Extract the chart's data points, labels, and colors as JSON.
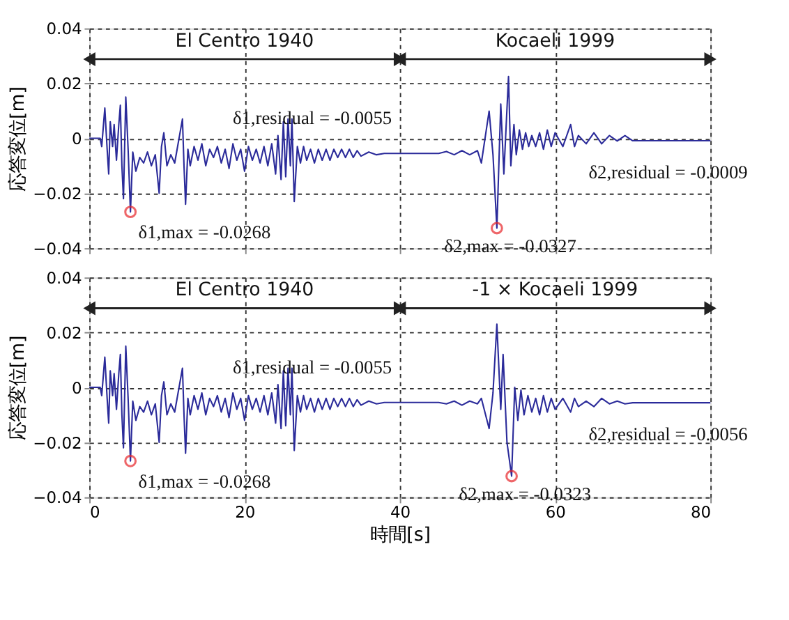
{
  "chart_data": [
    {
      "type": "line",
      "ylabel": "応答変位[m]",
      "xlim": [
        0,
        80
      ],
      "xticks": [
        0,
        20,
        40,
        60,
        80
      ],
      "ylim": [
        -0.04,
        0.04
      ],
      "yticks": [
        -0.04,
        -0.02,
        0,
        0.02,
        0.04
      ],
      "grid": true,
      "tick_labels": "y",
      "annotations": [
        "El Centro 1940",
        "Kocaeli 1999",
        {
          "text": "δ1,max = -0.0268",
          "x": 5.3,
          "y": -0.0268
        },
        {
          "text": "δ1,residual = -0.0055",
          "x": 40,
          "y": -0.0055
        },
        {
          "text": "δ2,max = -0.0327",
          "x": 52.5,
          "y": -0.0327
        },
        {
          "text": "δ2,residual = -0.0009",
          "x": 80,
          "y": -0.0009
        }
      ],
      "series": [
        {
          "color": "#2b2b9a",
          "line_style": "solid",
          "x": [
            0,
            1.4,
            1.6,
            2.0,
            2.3,
            2.5,
            2.7,
            3.0,
            3.2,
            3.5,
            3.8,
            4.0,
            4.2,
            4.4,
            4.7,
            5.0,
            5.3,
            5.6,
            6.0,
            6.5,
            7,
            7.5,
            8,
            8.5,
            9,
            9.3,
            9.6,
            10,
            10.5,
            11,
            12,
            12.2,
            12.4,
            12.7,
            13,
            13.5,
            14,
            14.5,
            15,
            15.5,
            16,
            16.5,
            17,
            17.5,
            18,
            18.5,
            19,
            19.5,
            20,
            20.5,
            21,
            21.5,
            22,
            22.5,
            23,
            23.5,
            24,
            24.3,
            24.7,
            25,
            25.3,
            25.6,
            25.9,
            26.1,
            26.4,
            26.8,
            27.2,
            27.6,
            28,
            28.5,
            29,
            29.5,
            30,
            30.5,
            31,
            31.5,
            32,
            32.5,
            33,
            33.5,
            34,
            34.5,
            35,
            36,
            37,
            38,
            40,
            45,
            46,
            47,
            48,
            49,
            50,
            50.5,
            51.5,
            52,
            52.5,
            53,
            53.4,
            54,
            54.3,
            54.7,
            55,
            55.4,
            55.8,
            56.2,
            56.6,
            57,
            57.5,
            58,
            58.5,
            59,
            59.5,
            60,
            61,
            62,
            62.5,
            63,
            64,
            65,
            66,
            67,
            68,
            69,
            70,
            80
          ],
          "values": [
            0,
            0,
            -0.003,
            0.011,
            -0.004,
            -0.013,
            0.006,
            -0.003,
            0.005,
            -0.008,
            0.005,
            0.012,
            -0.01,
            -0.022,
            0.015,
            -0.004,
            -0.0268,
            -0.005,
            -0.012,
            -0.007,
            -0.009,
            -0.005,
            -0.01,
            -0.006,
            -0.02,
            -0.003,
            0.002,
            -0.01,
            -0.006,
            -0.009,
            0.007,
            -0.01,
            -0.024,
            -0.004,
            -0.01,
            -0.003,
            -0.008,
            -0.002,
            -0.01,
            -0.004,
            -0.007,
            -0.003,
            -0.009,
            -0.004,
            -0.011,
            -0.002,
            -0.008,
            -0.004,
            -0.012,
            -0.003,
            -0.008,
            -0.004,
            -0.009,
            -0.003,
            -0.01,
            -0.002,
            -0.013,
            0.001,
            -0.015,
            0.006,
            -0.014,
            0.007,
            -0.01,
            0.007,
            -0.023,
            -0.003,
            -0.009,
            -0.003,
            -0.008,
            -0.004,
            -0.009,
            -0.004,
            -0.008,
            -0.004,
            -0.008,
            -0.004,
            -0.007,
            -0.004,
            -0.007,
            -0.004,
            -0.007,
            -0.0045,
            -0.0065,
            -0.005,
            -0.006,
            -0.0055,
            -0.0055,
            -0.0055,
            -0.0048,
            -0.006,
            -0.0045,
            -0.006,
            -0.0045,
            -0.009,
            0.0099,
            -0.006,
            -0.0327,
            0.0125,
            -0.013,
            0.0225,
            -0.01,
            0.005,
            -0.006,
            0.003,
            -0.004,
            0.002,
            -0.003,
            0.001,
            -0.003,
            0.002,
            -0.004,
            0.003,
            -0.003,
            0.002,
            -0.003,
            0.005,
            -0.003,
            0.001,
            -0.002,
            0.002,
            -0.002,
            0.001,
            -0.001,
            0.001,
            -0.0009,
            -0.0009
          ]
        },
        {
          "type": "scatter",
          "color": "#e8262a",
          "marker": "circle",
          "x": [
            5.3,
            52.5
          ],
          "values": [
            -0.0268,
            -0.0327
          ]
        }
      ]
    },
    {
      "type": "line",
      "xlabel": "時間[s]",
      "ylabel": "応答変位[m]",
      "xlim": [
        0,
        80
      ],
      "xticks": [
        0,
        20,
        40,
        60,
        80
      ],
      "ylim": [
        -0.04,
        0.04
      ],
      "yticks": [
        -0.04,
        -0.02,
        0,
        0.02,
        0.04
      ],
      "grid": true,
      "annotations": [
        "El Centro 1940",
        "-1 × Kocaeli 1999",
        {
          "text": "δ1,max = -0.0268",
          "x": 5.3,
          "y": -0.0268
        },
        {
          "text": "δ1,residual = -0.0055",
          "x": 40,
          "y": -0.0055
        },
        {
          "text": "δ2,max = -0.0323",
          "x": 54.4,
          "y": -0.0323
        },
        {
          "text": "δ2,residual = -0.0056",
          "x": 80,
          "y": -0.0056
        }
      ],
      "series": [
        {
          "color": "#2b2b9a",
          "line_style": "solid",
          "x": [
            0,
            1.4,
            1.6,
            2.0,
            2.3,
            2.5,
            2.7,
            3.0,
            3.2,
            3.5,
            3.8,
            4.0,
            4.2,
            4.4,
            4.7,
            5.0,
            5.3,
            5.6,
            6.0,
            6.5,
            7,
            7.5,
            8,
            8.5,
            9,
            9.3,
            9.6,
            10,
            10.5,
            11,
            12,
            12.2,
            12.4,
            12.7,
            13,
            13.5,
            14,
            14.5,
            15,
            15.5,
            16,
            16.5,
            17,
            17.5,
            18,
            18.5,
            19,
            19.5,
            20,
            20.5,
            21,
            21.5,
            22,
            22.5,
            23,
            23.5,
            24,
            24.3,
            24.7,
            25,
            25.3,
            25.6,
            25.9,
            26.1,
            26.4,
            26.8,
            27.2,
            27.6,
            28,
            28.5,
            29,
            29.5,
            30,
            30.5,
            31,
            31.5,
            32,
            32.5,
            33,
            33.5,
            34,
            34.5,
            35,
            36,
            37,
            38,
            40,
            45,
            46,
            47,
            48,
            49,
            50,
            50.5,
            51.5,
            52,
            52.5,
            53,
            53.3,
            53.8,
            54.4,
            54.8,
            55.2,
            55.6,
            56,
            56.5,
            57,
            57.5,
            58,
            58.5,
            59,
            59.5,
            60,
            61,
            62,
            62.5,
            63,
            64,
            65,
            66,
            67,
            68,
            69,
            70,
            80
          ],
          "values": [
            0,
            0,
            -0.003,
            0.011,
            -0.004,
            -0.013,
            0.006,
            -0.003,
            0.005,
            -0.008,
            0.005,
            0.012,
            -0.01,
            -0.022,
            0.015,
            -0.004,
            -0.0268,
            -0.005,
            -0.012,
            -0.007,
            -0.009,
            -0.005,
            -0.01,
            -0.006,
            -0.02,
            -0.003,
            0.002,
            -0.01,
            -0.006,
            -0.009,
            0.007,
            -0.01,
            -0.024,
            -0.004,
            -0.01,
            -0.003,
            -0.008,
            -0.002,
            -0.01,
            -0.004,
            -0.007,
            -0.003,
            -0.009,
            -0.004,
            -0.011,
            -0.002,
            -0.008,
            -0.004,
            -0.012,
            -0.003,
            -0.008,
            -0.004,
            -0.009,
            -0.003,
            -0.01,
            -0.002,
            -0.013,
            0.001,
            -0.015,
            0.006,
            -0.014,
            0.007,
            -0.01,
            0.007,
            -0.023,
            -0.003,
            -0.009,
            -0.003,
            -0.008,
            -0.004,
            -0.009,
            -0.004,
            -0.008,
            -0.004,
            -0.008,
            -0.004,
            -0.007,
            -0.004,
            -0.007,
            -0.004,
            -0.007,
            -0.0045,
            -0.0065,
            -0.005,
            -0.006,
            -0.0055,
            -0.0055,
            -0.0055,
            -0.006,
            -0.005,
            -0.0065,
            -0.005,
            -0.006,
            -0.004,
            -0.015,
            -0.002,
            0.023,
            -0.008,
            0.012,
            -0.02,
            -0.0323,
            0.0,
            -0.012,
            -0.001,
            -0.01,
            -0.003,
            -0.009,
            -0.004,
            -0.01,
            -0.003,
            -0.009,
            -0.004,
            -0.008,
            -0.004,
            -0.009,
            -0.004,
            -0.007,
            -0.005,
            -0.007,
            -0.004,
            -0.006,
            -0.005,
            -0.006,
            -0.0056,
            -0.0056
          ]
        },
        {
          "type": "scatter",
          "color": "#e8262a",
          "marker": "circle",
          "x": [
            5.3,
            54.4
          ],
          "values": [
            -0.0268,
            -0.0323
          ]
        }
      ]
    }
  ]
}
